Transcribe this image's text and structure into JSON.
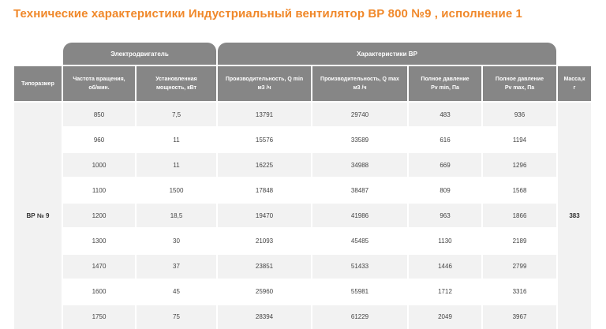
{
  "title": "Технические характеристики Индустриальный вентилятор ВР 800 №9 , исполнение 1",
  "group_headers": {
    "motor": "Электродвигатель",
    "fan": "Характеристики ВР"
  },
  "columns": {
    "size": [
      "Типоразмер"
    ],
    "speed": [
      "Частота вращения,",
      "об/мин."
    ],
    "power": [
      "Установленная",
      "мощность, кВт"
    ],
    "q_min": [
      "Производительность, Q min",
      "м3 /ч"
    ],
    "q_max": [
      "Производительность, Q max",
      "м3 /ч"
    ],
    "pv_min": [
      "Полное давление",
      "Pv min, Па"
    ],
    "pv_max": [
      "Полное давление",
      "Pv max, Па"
    ],
    "mass": [
      "Масса,к",
      "г"
    ]
  },
  "model": "ВР  № 9",
  "mass": "383",
  "rows": [
    [
      "850",
      "7,5",
      "13791",
      "29740",
      "483",
      "936"
    ],
    [
      "960",
      "11",
      "15576",
      "33589",
      "616",
      "1194"
    ],
    [
      "1000",
      "11",
      "16225",
      "34988",
      "669",
      "1296"
    ],
    [
      "1100",
      "1500",
      "17848",
      "38487",
      "809",
      "1568"
    ],
    [
      "1200",
      "18,5",
      "19470",
      "41986",
      "963",
      "1866"
    ],
    [
      "1300",
      "30",
      "21093",
      "45485",
      "1130",
      "2189"
    ],
    [
      "1470",
      "37",
      "23851",
      "51433",
      "1446",
      "2799"
    ],
    [
      "1600",
      "45",
      "25960",
      "55981",
      "1712",
      "3316"
    ],
    [
      "1750",
      "75",
      "28394",
      "61229",
      "2049",
      "3967"
    ]
  ]
}
